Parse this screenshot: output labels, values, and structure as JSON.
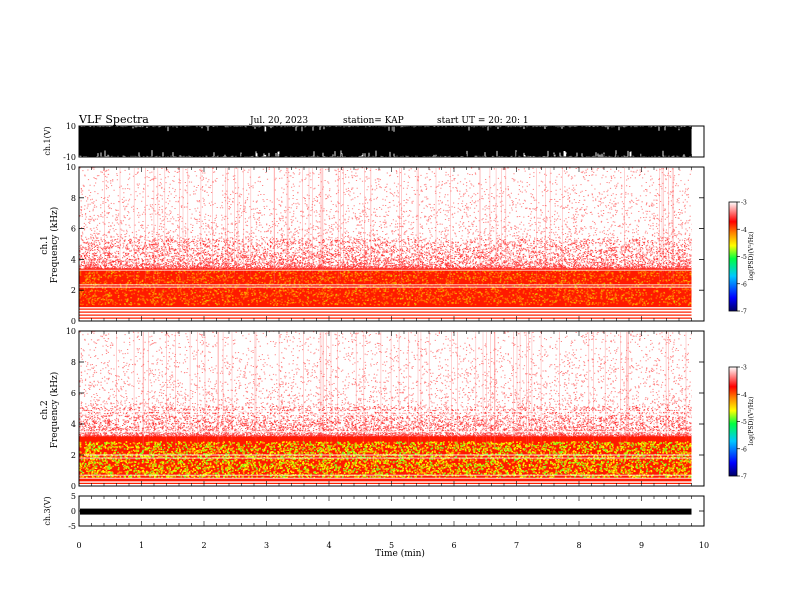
{
  "header": {
    "title": "VLF Spectra",
    "date": "Jul. 20, 2023",
    "station": "station= KAP",
    "start": "start  UT =   20: 20: 1"
  },
  "chart_data": [
    {
      "type": "line",
      "panel": "ch1-waveform",
      "ylabel": "ch.1(V)",
      "ylim": [
        -10,
        10
      ],
      "yticks": [
        "10",
        "-10"
      ],
      "fill_color": "#000000"
    },
    {
      "type": "heatmap",
      "panel": "ch1-spectrogram",
      "ylabel_lines": [
        "ch.1",
        "Frequency (kHz)"
      ],
      "ylim": [
        0,
        10
      ],
      "yticks": [
        "0",
        "2",
        "4",
        "6",
        "8",
        "10"
      ],
      "band_kHz": {
        "strong_low": 0.9,
        "strong_high": 3.4,
        "weak_high": 10
      },
      "colorbar": {
        "label": "log(PSD)(V²/Hz)",
        "min": -7,
        "max": -3,
        "ticks": [
          "-3",
          "-4",
          "-5",
          "-6",
          "-7"
        ]
      }
    },
    {
      "type": "heatmap",
      "panel": "ch2-spectrogram",
      "ylabel_lines": [
        "ch.2",
        "Frequency (kHz)"
      ],
      "ylim": [
        0,
        10
      ],
      "yticks": [
        "0",
        "2",
        "4",
        "6",
        "8",
        "10"
      ],
      "band_kHz": {
        "strong_low": 0.3,
        "strong_high": 3.2,
        "weak_high": 10
      },
      "colorbar": {
        "label": "log(PSD)(V²/Hz)",
        "min": -7,
        "max": -3,
        "ticks": [
          "-3",
          "-4",
          "-5",
          "-6",
          "-7"
        ]
      }
    },
    {
      "type": "line",
      "panel": "ch3-waveform",
      "ylabel": "ch.3(V)",
      "ylim": [
        -5,
        5
      ],
      "yticks": [
        "5",
        "0",
        "-5"
      ],
      "trace_level": -0.2
    }
  ],
  "x_axis": {
    "label": "Time (min)",
    "range": [
      0,
      10
    ],
    "data_end": 9.8,
    "ticks": [
      "0",
      "1",
      "2",
      "3",
      "4",
      "5",
      "6",
      "7",
      "8",
      "9",
      "10"
    ]
  },
  "colors": {
    "background": "#ffffff",
    "axis": "#000000",
    "colormap": [
      "#000066",
      "#0000ff",
      "#00c0ff",
      "#00ff40",
      "#ffff00",
      "#ff8000",
      "#ff0000",
      "#ffffff"
    ]
  }
}
